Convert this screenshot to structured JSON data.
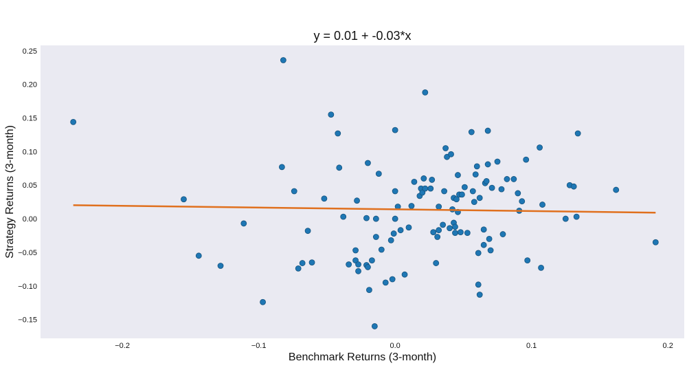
{
  "chart_data": {
    "type": "scatter",
    "title": "y = 0.01 + -0.03*x",
    "xlabel": "Benchmark Returns (3-month)",
    "ylabel": "Strategy Returns (3-month)",
    "xlim": [
      -0.26,
      0.212
    ],
    "ylim": [
      -0.178,
      0.258
    ],
    "x_ticks": [
      -0.2,
      -0.1,
      0.0,
      0.1,
      0.2
    ],
    "x_tick_labels": [
      "−0.2",
      "−0.1",
      "0.0",
      "0.1",
      "0.2"
    ],
    "y_ticks": [
      -0.15,
      -0.1,
      -0.05,
      0.0,
      0.05,
      0.1,
      0.15,
      0.2,
      0.25
    ],
    "y_tick_labels": [
      "−0.15",
      "−0.10",
      "−0.05",
      "0.00",
      "0.05",
      "0.10",
      "0.15",
      "0.20",
      "0.25"
    ],
    "grid": false,
    "colors": {
      "background": "#eaeaf2",
      "points": "#1f77b4",
      "fit_line": "#e0701e"
    },
    "fit_line": {
      "intercept": 0.014,
      "slope": -0.026,
      "x_range": [
        -0.236,
        0.191
      ]
    },
    "series": [
      {
        "points": [
          [
            -0.236,
            0.144
          ],
          [
            -0.082,
            0.236
          ],
          [
            -0.155,
            0.029
          ],
          [
            -0.144,
            -0.055
          ],
          [
            -0.128,
            -0.07
          ],
          [
            -0.111,
            -0.007
          ],
          [
            -0.097,
            -0.124
          ],
          [
            -0.083,
            0.077
          ],
          [
            -0.074,
            0.041
          ],
          [
            -0.071,
            -0.074
          ],
          [
            -0.068,
            -0.066
          ],
          [
            -0.064,
            -0.018
          ],
          [
            -0.061,
            -0.065
          ],
          [
            -0.052,
            0.03
          ],
          [
            -0.047,
            0.155
          ],
          [
            -0.042,
            0.127
          ],
          [
            -0.041,
            0.076
          ],
          [
            -0.038,
            0.003
          ],
          [
            -0.034,
            -0.068
          ],
          [
            -0.029,
            -0.047
          ],
          [
            -0.029,
            -0.062
          ],
          [
            -0.028,
            0.027
          ],
          [
            -0.027,
            -0.068
          ],
          [
            -0.027,
            -0.078
          ],
          [
            -0.021,
            0.001
          ],
          [
            -0.02,
            0.083
          ],
          [
            -0.021,
            -0.069
          ],
          [
            -0.02,
            -0.072
          ],
          [
            -0.019,
            -0.106
          ],
          [
            -0.017,
            -0.062
          ],
          [
            -0.015,
            -0.16
          ],
          [
            -0.014,
            0.0
          ],
          [
            -0.014,
            -0.027
          ],
          [
            -0.012,
            0.067
          ],
          [
            -0.01,
            -0.046
          ],
          [
            -0.007,
            -0.095
          ],
          [
            -0.003,
            -0.032
          ],
          [
            -0.002,
            -0.09
          ],
          [
            -0.001,
            -0.022
          ],
          [
            0.0,
            0.132
          ],
          [
            0.0,
            0.041
          ],
          [
            0.0,
            0.0
          ],
          [
            0.002,
            0.018
          ],
          [
            0.004,
            -0.017
          ],
          [
            0.007,
            -0.083
          ],
          [
            0.01,
            -0.013
          ],
          [
            0.012,
            0.019
          ],
          [
            0.014,
            0.055
          ],
          [
            0.018,
            0.034
          ],
          [
            0.019,
            0.045
          ],
          [
            0.02,
            0.039
          ],
          [
            0.021,
            0.06
          ],
          [
            0.022,
            0.045
          ],
          [
            0.022,
            0.188
          ],
          [
            0.026,
            0.045
          ],
          [
            0.027,
            0.058
          ],
          [
            0.028,
            -0.02
          ],
          [
            0.03,
            -0.066
          ],
          [
            0.031,
            -0.027
          ],
          [
            0.032,
            0.018
          ],
          [
            0.032,
            -0.017
          ],
          [
            0.035,
            -0.009
          ],
          [
            0.036,
            0.041
          ],
          [
            0.037,
            0.105
          ],
          [
            0.038,
            0.092
          ],
          [
            0.04,
            -0.014
          ],
          [
            0.041,
            0.096
          ],
          [
            0.042,
            0.014
          ],
          [
            0.043,
            0.031
          ],
          [
            0.043,
            -0.006
          ],
          [
            0.044,
            -0.012
          ],
          [
            0.044,
            -0.021
          ],
          [
            0.045,
            0.029
          ],
          [
            0.046,
            0.01
          ],
          [
            0.046,
            0.065
          ],
          [
            0.047,
            0.036
          ],
          [
            0.048,
            -0.02
          ],
          [
            0.049,
            0.036
          ],
          [
            0.051,
            0.047
          ],
          [
            0.053,
            -0.021
          ],
          [
            0.056,
            0.129
          ],
          [
            0.057,
            0.041
          ],
          [
            0.058,
            0.025
          ],
          [
            0.059,
            0.066
          ],
          [
            0.06,
            0.078
          ],
          [
            0.061,
            -0.051
          ],
          [
            0.061,
            -0.098
          ],
          [
            0.062,
            -0.113
          ],
          [
            0.062,
            0.031
          ],
          [
            0.065,
            -0.039
          ],
          [
            0.065,
            -0.016
          ],
          [
            0.066,
            0.053
          ],
          [
            0.067,
            0.056
          ],
          [
            0.068,
            0.081
          ],
          [
            0.068,
            0.131
          ],
          [
            0.069,
            -0.03
          ],
          [
            0.07,
            -0.047
          ],
          [
            0.071,
            0.046
          ],
          [
            0.075,
            0.085
          ],
          [
            0.078,
            0.044
          ],
          [
            0.079,
            -0.023
          ],
          [
            0.082,
            0.059
          ],
          [
            0.087,
            0.059
          ],
          [
            0.09,
            0.038
          ],
          [
            0.091,
            0.012
          ],
          [
            0.093,
            0.026
          ],
          [
            0.096,
            0.088
          ],
          [
            0.097,
            -0.062
          ],
          [
            0.106,
            0.106
          ],
          [
            0.107,
            -0.073
          ],
          [
            0.108,
            0.021
          ],
          [
            0.125,
            0.0
          ],
          [
            0.128,
            0.05
          ],
          [
            0.131,
            0.048
          ],
          [
            0.133,
            0.003
          ],
          [
            0.134,
            0.127
          ],
          [
            0.162,
            0.043
          ],
          [
            0.191,
            -0.035
          ]
        ]
      }
    ]
  }
}
